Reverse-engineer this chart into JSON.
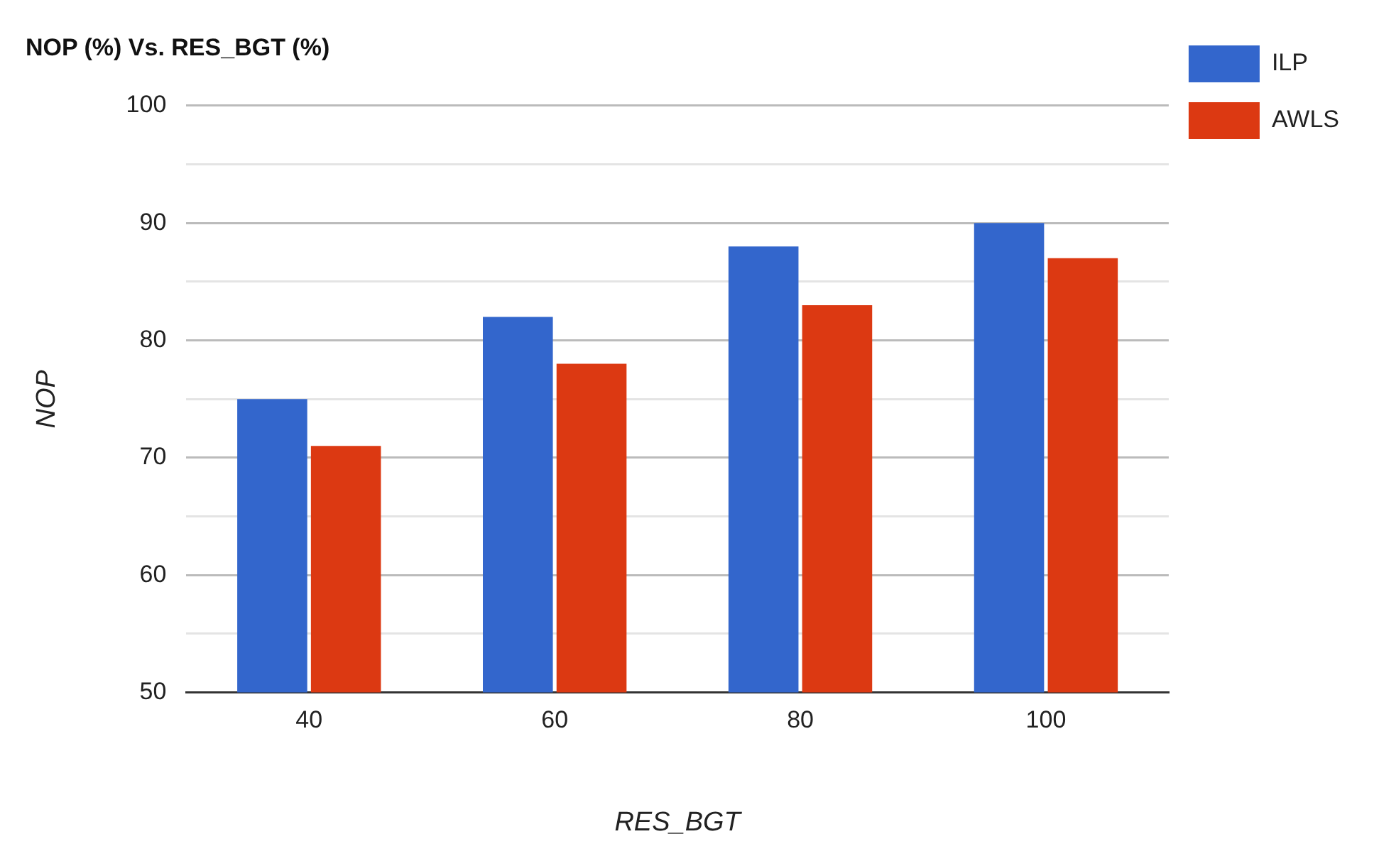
{
  "chart_data": {
    "type": "bar",
    "title": "NOP (%) Vs. RES_BGT (%)",
    "xlabel": "RES_BGT",
    "ylabel": "NOP",
    "categories": [
      "40",
      "60",
      "80",
      "100"
    ],
    "series": [
      {
        "name": "ILP",
        "color": "#3366cc",
        "values": [
          75,
          82,
          88,
          90
        ]
      },
      {
        "name": "AWLS",
        "color": "#dc3912",
        "values": [
          71,
          78,
          83,
          87
        ]
      }
    ],
    "ylim": [
      50,
      100
    ],
    "yticks": [
      50,
      {
        "value": 55,
        "label": null
      },
      60,
      {
        "value": 65,
        "label": null
      },
      70,
      {
        "value": 75,
        "label": null
      },
      80,
      {
        "value": 85,
        "label": null
      },
      90,
      {
        "value": 95,
        "label": null
      },
      100
    ],
    "grid": "y",
    "legend": "top right"
  }
}
